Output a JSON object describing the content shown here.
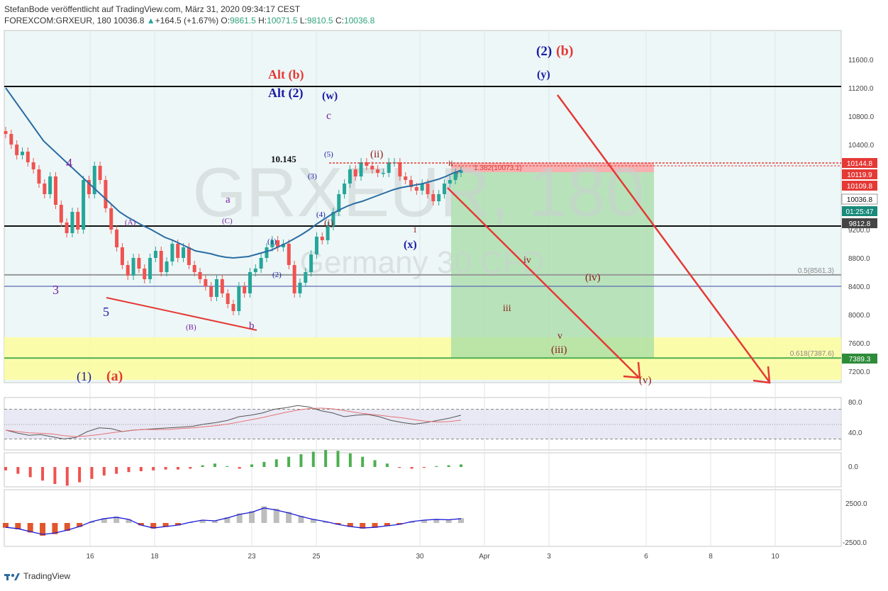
{
  "header": {
    "line1": "StefanBode veröffentlicht auf TradingView.com, März 31, 2020 09:34:17 CEST",
    "symbol": "FOREXCOM:GRXEUR, 180",
    "last": "10036.8",
    "change": "+164.5 (+1.67%)",
    "o_label": "O:",
    "o": "9861.5",
    "h_label": "H:",
    "h": "10071.5",
    "l_label": "L:",
    "l": "9810.5",
    "c_label": "C:",
    "c": "10036.8"
  },
  "watermark": {
    "symbol": "GRXEUR, 180",
    "description": "Germany 30 CFD"
  },
  "colors": {
    "up": "#26a69a",
    "down": "#ef5350",
    "ma": "#2b6ca3",
    "annot_red": "#e53935",
    "wave_blue": "#1a1aa6",
    "wave_purple": "#7b1fa2",
    "wave_brown": "#8b1a1a"
  },
  "chart_data": {
    "type": "line",
    "title": "",
    "y_axis_ticks": [
      11600,
      11200,
      10800,
      10400,
      10000,
      9600,
      9200,
      8800,
      8400,
      8000,
      7600,
      7200
    ],
    "y_axis_labels": [
      "11600.0",
      "11200.0",
      "10800.0",
      "10400.0",
      "10000.0",
      "9600.0",
      "9200.0",
      "8800.0",
      "8400.0",
      "8000.0",
      "7600.0",
      "7200.0"
    ],
    "x_axis_labels": [
      "16",
      "18",
      "23",
      "25",
      "30",
      "Apr",
      "3",
      "6",
      "8",
      "10"
    ],
    "price_series": [
      10550,
      10400,
      10250,
      10300,
      10150,
      10050,
      9850,
      9700,
      9950,
      9550,
      9300,
      9150,
      9450,
      9200,
      9900,
      9700,
      10100,
      9900,
      9500,
      9200,
      8950,
      8700,
      8550,
      8800,
      8650,
      8500,
      8800,
      8900,
      8600,
      8750,
      9000,
      8800,
      8950,
      8700,
      8600,
      8500,
      8400,
      8250,
      8500,
      8300,
      8150,
      8050,
      8400,
      8300,
      8600,
      8650,
      8800,
      8950,
      9050,
      8950,
      9000,
      8700,
      8300,
      8450,
      8600,
      8850,
      9100,
      9050,
      9250,
      9450,
      9700,
      9850,
      10050,
      9950,
      10150,
      10100,
      10050,
      10000,
      10000,
      10150,
      10150,
      9950,
      9900,
      9800,
      9750,
      9850,
      9700,
      9600,
      9700,
      9850,
      9900,
      10000,
      10036.8
    ],
    "ma_series": [
      11200,
      11050,
      10900,
      10750,
      10600,
      10450,
      10350,
      10250,
      10150,
      10050,
      9950,
      9850,
      9750,
      9650,
      9550,
      9450,
      9380,
      9320,
      9260,
      9210,
      9150,
      9090,
      9050,
      9000,
      8950,
      8900,
      8880,
      8860,
      8830,
      8810,
      8800,
      8810,
      8820,
      8850,
      8880,
      8910,
      8960,
      9010,
      9070,
      9130,
      9200,
      9280,
      9350,
      9420,
      9480,
      9530,
      9570,
      9600,
      9640,
      9680,
      9720,
      9760,
      9790,
      9810,
      9830,
      9850,
      9880,
      9910,
      9950,
      10000,
      10036.8
    ],
    "horizontal_lines": [
      {
        "value": 11220
      },
      {
        "value": 9250
      },
      {
        "value": 8561.3,
        "label": "0.5(8561.3)"
      },
      {
        "value": 8400
      },
      {
        "value": 7387.6,
        "label": "0.618(7387.6)"
      }
    ],
    "yellow_zone": [
      7080,
      7680
    ],
    "price_tags": [
      {
        "value": 10144.8,
        "label": "10144.8"
      },
      {
        "value": 10119.9,
        "label": "10119.9"
      },
      {
        "value": 10109.8,
        "label": "10109.8"
      },
      {
        "value": 10036.8,
        "label": "10036.8"
      },
      {
        "value": 9950,
        "label": "01:25:47"
      },
      {
        "value": 9812.8,
        "label": "9812.8"
      },
      {
        "value": 7389.3,
        "label": "7389.3"
      }
    ],
    "fib_label": "1.382(10073.1)",
    "annotations": {
      "alt_b": "Alt (b)",
      "alt_2": "Alt (2)",
      "w": "(w)",
      "c": "c",
      "val_10145": "10.145",
      "y": "(y)",
      "two": "(2)",
      "b_paren": "(b)",
      "four": "4",
      "three": "3",
      "five": "5",
      "a_small": "a",
      "A": "(A)",
      "C_": "(C)",
      "B": "(B)",
      "b_small": "b",
      "one_b": "(1)",
      "two_b": "(2)",
      "three_b": "(3)",
      "four_b": "(4)",
      "five_b": "(5)",
      "i": "(i)",
      "ii": "(ii)",
      "ii_small": "ii",
      "one_small": "1",
      "x": "(x)",
      "iv_small": "iv",
      "iii": "iii",
      "v_small": "v",
      "iii_paren": "(iii)",
      "iv_paren": "(iv)",
      "v_paren": "(v)",
      "one_paren": "(1)",
      "a_paren": "(a)"
    },
    "rsi": {
      "ticks": [
        "80.0",
        "40.0"
      ],
      "upper": 70,
      "lower": 30,
      "values": [
        42,
        38,
        35,
        36,
        33,
        30,
        32,
        40,
        45,
        44,
        40,
        42,
        43,
        44,
        45,
        46,
        47,
        50,
        52,
        55,
        60,
        62,
        65,
        70,
        72,
        75,
        73,
        68,
        65,
        60,
        62,
        63,
        60,
        55,
        52,
        50,
        52,
        55,
        58,
        62
      ]
    },
    "macd": {
      "ticks": [
        "0.0"
      ],
      "values": [
        -4,
        -8,
        -12,
        -16,
        -20,
        -22,
        -18,
        -14,
        -10,
        -8,
        -6,
        -5,
        -4,
        -3,
        -3,
        -2,
        2,
        4,
        1,
        -2,
        3,
        6,
        9,
        12,
        15,
        18,
        20,
        19,
        16,
        12,
        8,
        4,
        -1,
        -2,
        -1,
        1,
        2,
        3
      ]
    },
    "vol": {
      "ticks": [
        "2500.0",
        "-2500.0"
      ],
      "values": [
        -600,
        -800,
        -1200,
        -1600,
        -1400,
        -1000,
        -500,
        200,
        600,
        800,
        500,
        -300,
        -700,
        -500,
        -300,
        100,
        400,
        300,
        700,
        1200,
        1500,
        2100,
        1800,
        1400,
        900,
        500,
        200,
        -200,
        -500,
        -700,
        -600,
        -400,
        -200,
        200,
        400,
        500,
        450,
        600
      ]
    }
  },
  "footer": {
    "brand": "TradingView"
  }
}
